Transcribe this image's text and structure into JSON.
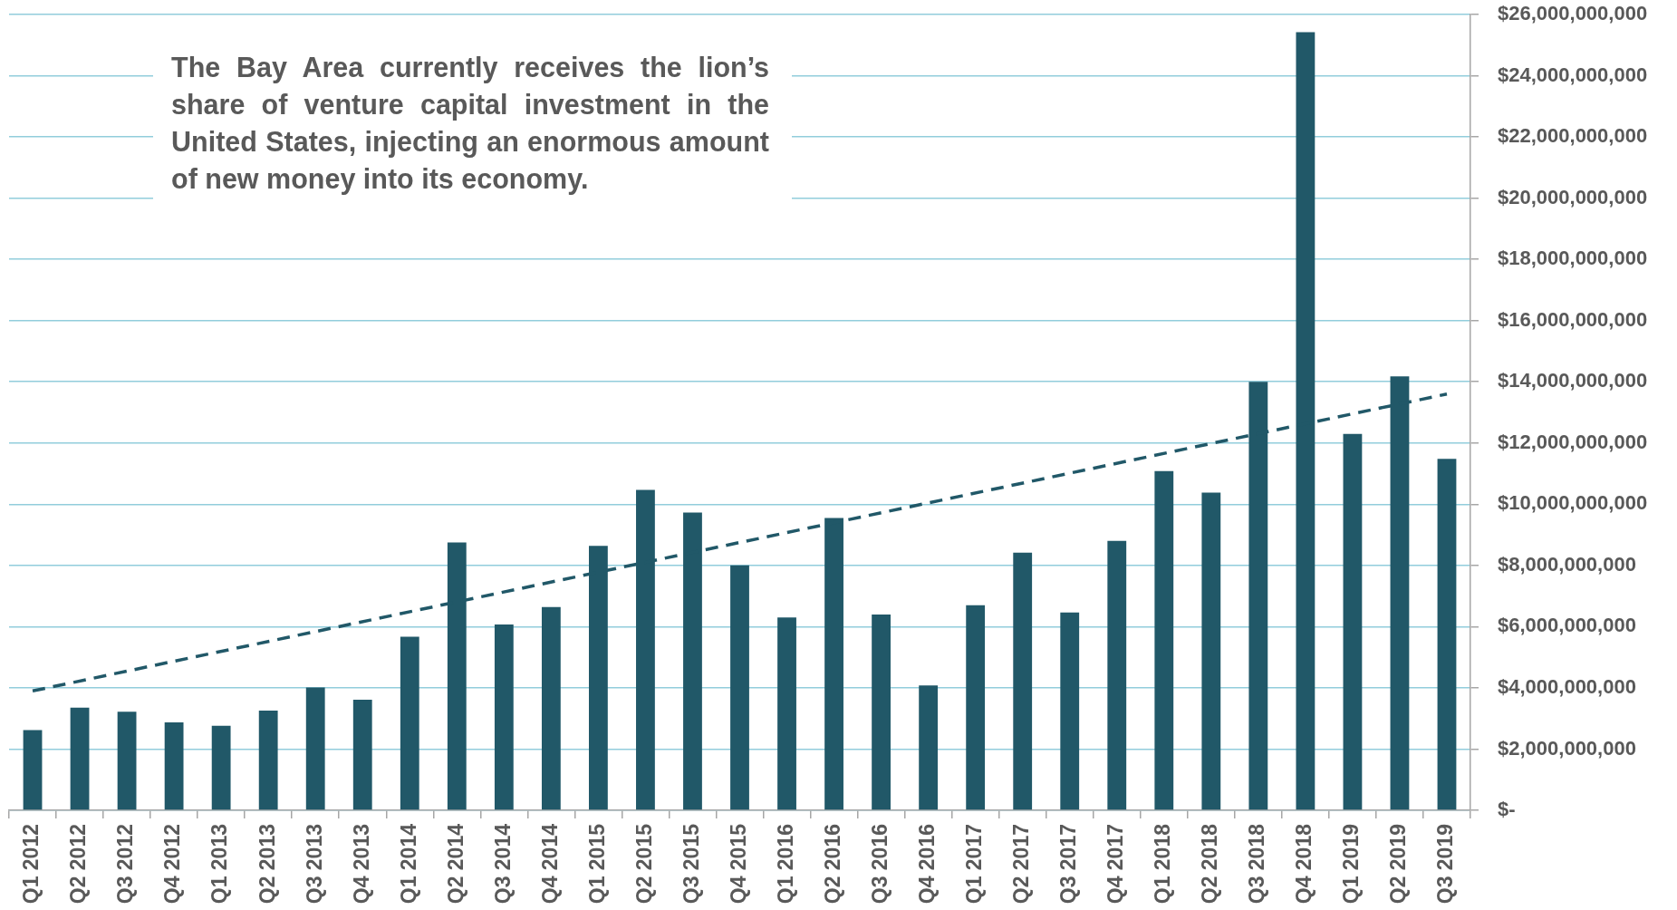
{
  "chart_data": {
    "type": "bar",
    "categories": [
      "Q1 2012",
      "Q2 2012",
      "Q3 2012",
      "Q4 2012",
      "Q1 2013",
      "Q2 2013",
      "Q3 2013",
      "Q4 2013",
      "Q1 2014",
      "Q2 2014",
      "Q3 2014",
      "Q4 2014",
      "Q1 2015",
      "Q2 2015",
      "Q3 2015",
      "Q4 2015",
      "Q1 2016",
      "Q2 2016",
      "Q3 2016",
      "Q4 2016",
      "Q1 2017",
      "Q2 2017",
      "Q3 2017",
      "Q4 2017",
      "Q1 2018",
      "Q2 2018",
      "Q3 2018",
      "Q4 2018",
      "Q1 2019",
      "Q2 2019",
      "Q3 2019"
    ],
    "series": [
      {
        "color": "#215868",
        "values": [
          2620000000,
          3350000000,
          3220000000,
          2870000000,
          2760000000,
          3260000000,
          4010000000,
          3610000000,
          5670000000,
          8750000000,
          6070000000,
          6640000000,
          8640000000,
          10470000000,
          9730000000,
          8000000000,
          6300000000,
          9550000000,
          6400000000,
          4080000000,
          6700000000,
          8420000000,
          6460000000,
          8800000000,
          11080000000,
          10380000000,
          14000000000,
          25420000000,
          12300000000,
          14180000000,
          11480000000
        ]
      },
      {
        "type": "line",
        "color": "#215868",
        "line_style": "dashed",
        "x": [
          "Q1 2012",
          "Q3 2019"
        ],
        "values": [
          3900000000,
          13600000000
        ]
      }
    ],
    "ylim": [
      0,
      26000000000
    ],
    "yticks": [
      {
        "value": 0,
        "label": "$-"
      },
      {
        "value": 2000000000,
        "label": "$2,000,000,000"
      },
      {
        "value": 4000000000,
        "label": "$4,000,000,000"
      },
      {
        "value": 6000000000,
        "label": "$6,000,000,000"
      },
      {
        "value": 8000000000,
        "label": "$8,000,000,000"
      },
      {
        "value": 10000000000,
        "label": "$10,000,000,000"
      },
      {
        "value": 12000000000,
        "label": "$12,000,000,000"
      },
      {
        "value": 14000000000,
        "label": "$14,000,000,000"
      },
      {
        "value": 16000000000,
        "label": "$16,000,000,000"
      },
      {
        "value": 18000000000,
        "label": "$18,000,000,000"
      },
      {
        "value": 20000000000,
        "label": "$20,000,000,000"
      },
      {
        "value": 22000000000,
        "label": "$22,000,000,000"
      },
      {
        "value": 24000000000,
        "label": "$24,000,000,000"
      },
      {
        "value": 26000000000,
        "label": "$26,000,000,000"
      }
    ],
    "grid": "y",
    "annotations": [
      "The Bay Area currently receives the lion’s share of venture capital investment in the United States, injecting an enormous amount of new money into its economy."
    ]
  }
}
